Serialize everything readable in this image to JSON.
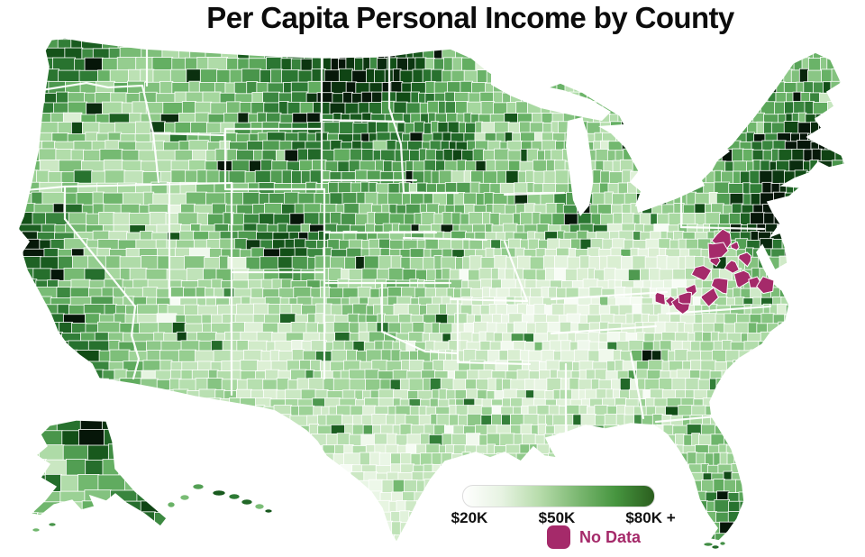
{
  "title": "Per Capita Personal Income by County",
  "chart_data": {
    "type": "choropleth",
    "geography": "United States, county level",
    "insets": [
      "Alaska"
    ],
    "metric": "Per capita personal income (USD)",
    "color_scale": {
      "style": "sequential green gradient, white (low) to dark green (high)",
      "min_label": "$20K",
      "mid_label": "$50K",
      "max_label": "$80K +",
      "legend_gradient": [
        "#ffffff",
        "#e7f3e2",
        "#b7dcab",
        "#7cb872",
        "#46953f",
        "#2b5e1e"
      ],
      "county_palette": [
        "#f7fcf5",
        "#dbefd3",
        "#a5d79e",
        "#64af62",
        "#2d7a34",
        "#114e16",
        "#061609"
      ]
    },
    "legend": {
      "tick_labels": [
        "$20K",
        "$50K",
        "$80K +"
      ],
      "no_data": {
        "label": "No Data",
        "color": "#A52A6A"
      }
    },
    "patterns": {
      "high_income_areas": [
        "San Francisco Bay Area",
        "Seattle",
        "Los Angeles coast",
        "Denver / Colorado",
        "western North Dakota",
        "Northeast corridor (Boston, New York, Washington DC)",
        "Minneapolis",
        "Chicago",
        "Atlanta",
        "South Florida",
        "Alaska North Slope"
      ],
      "low_income_areas": [
        "Deep South / Mississippi Delta",
        "Appalachia (Kentucky, West Virginia)",
        "South Texas border counties",
        "eastern New Mexico",
        "Ozarks"
      ],
      "no_data_areas": [
        "Cluster of counties / independent cities in Virginia"
      ]
    }
  }
}
